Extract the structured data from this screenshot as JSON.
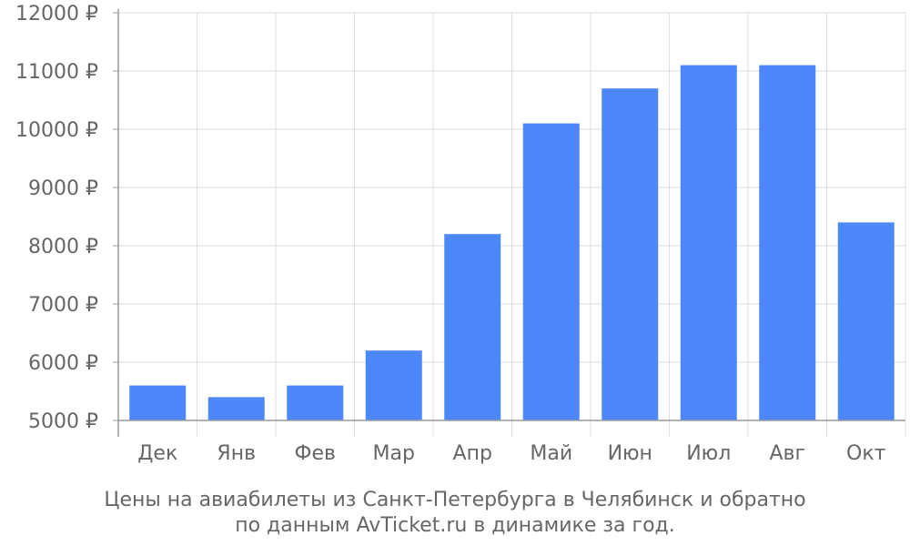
{
  "chart_data": {
    "type": "bar",
    "categories": [
      "Дек",
      "Янв",
      "Фев",
      "Мар",
      "Апр",
      "Май",
      "Июн",
      "Июл",
      "Авг",
      "Окт"
    ],
    "values": [
      5600,
      5400,
      5600,
      6200,
      8200,
      10100,
      10700,
      11100,
      11100,
      8400
    ],
    "ylim": [
      5000,
      12000
    ],
    "yticks": [
      5000,
      6000,
      7000,
      8000,
      9000,
      10000,
      11000,
      12000
    ],
    "currency_suffix": " ₽",
    "grid": true,
    "bar_color": "#4d88fa",
    "grid_color": "#dddddd",
    "axis_color": "#999999",
    "caption_lines": [
      "Цены на авиабилеты из Санкт-Петербурга в Челябинск и обратно",
      "по данным AvTicket.ru в динамике за год."
    ]
  }
}
